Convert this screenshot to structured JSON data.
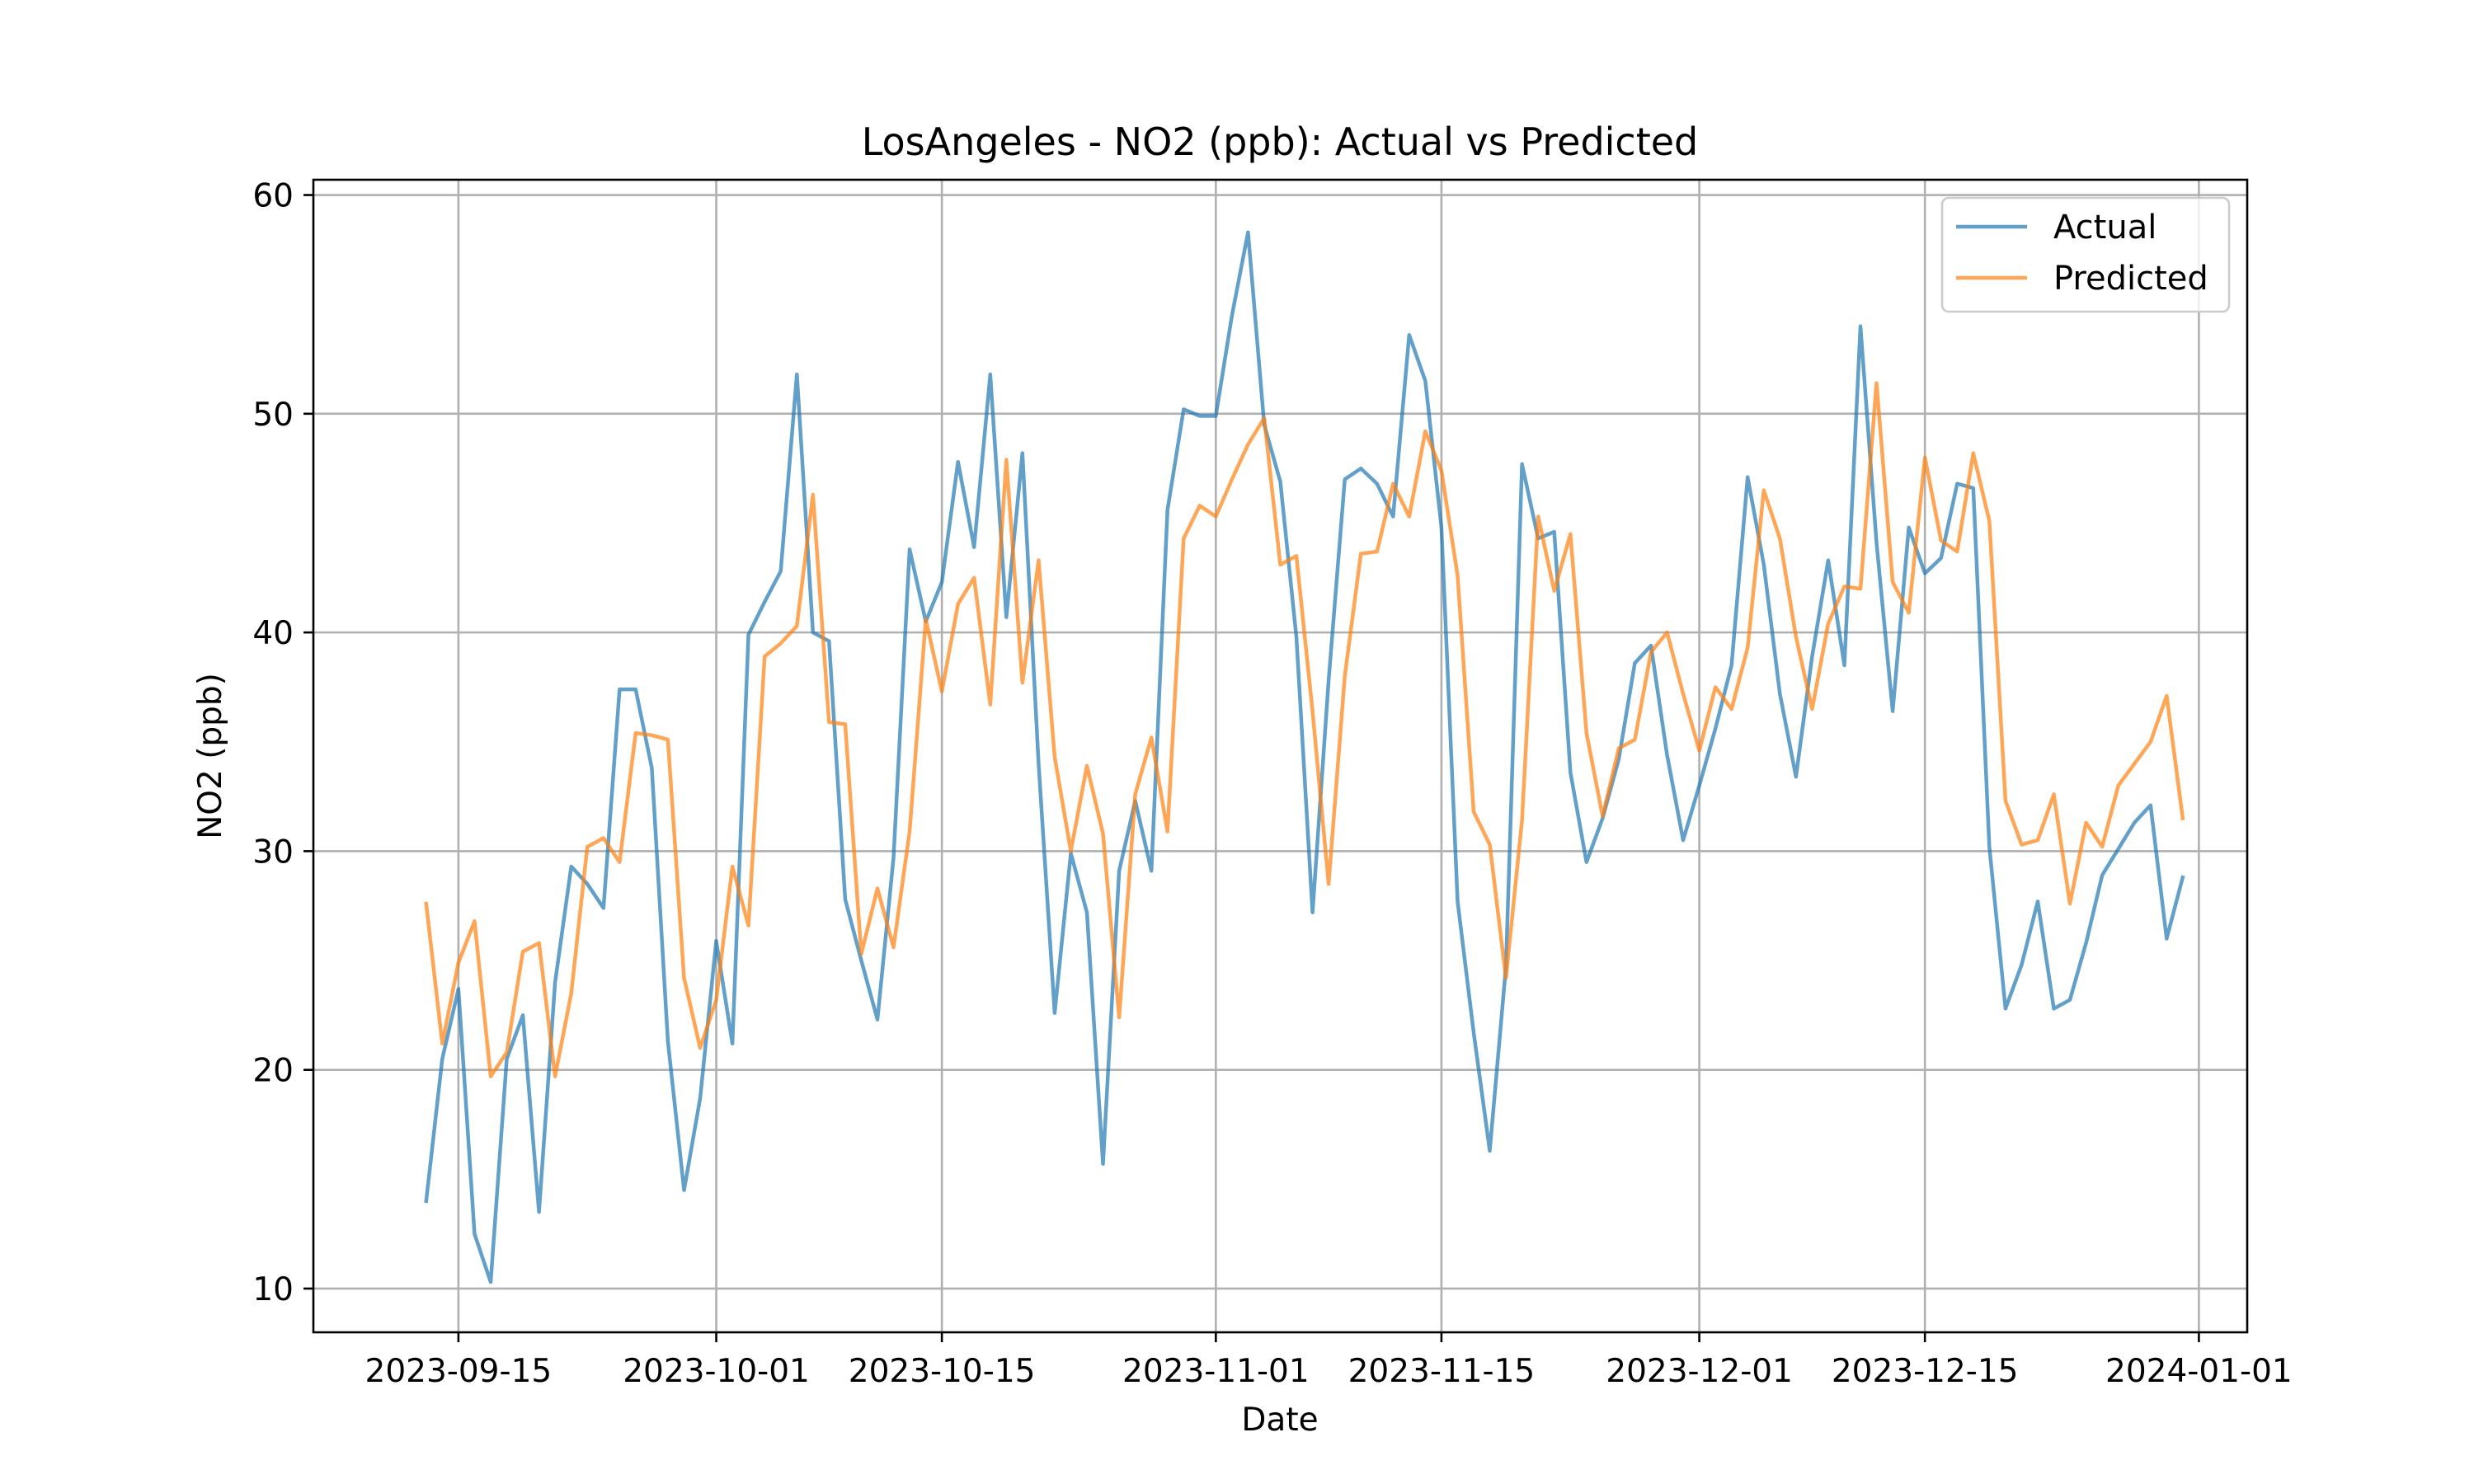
{
  "chart_data": {
    "type": "line",
    "title": "LosAngeles - NO2 (ppb): Actual vs Predicted",
    "xlabel": "Date",
    "ylabel": "NO2 (ppb)",
    "x_start": "2023-09-13",
    "x_range": [
      "2023-09-06",
      "2024-01-04"
    ],
    "ylim": [
      8.0,
      60.7
    ],
    "xticks": [
      "2023-09-15",
      "2023-10-01",
      "2023-10-15",
      "2023-11-01",
      "2023-11-15",
      "2023-12-01",
      "2023-12-15",
      "2024-01-01"
    ],
    "yticks": [
      10,
      20,
      30,
      40,
      50,
      60
    ],
    "grid": true,
    "legend": "top-right",
    "series": [
      {
        "name": "Actual",
        "color": "#1f77b4",
        "values": [
          14.0,
          20.5,
          23.7,
          12.5,
          10.3,
          20.5,
          22.5,
          13.5,
          24.0,
          29.3,
          28.5,
          27.4,
          37.4,
          37.4,
          33.8,
          21.3,
          14.5,
          18.7,
          25.9,
          21.2,
          39.9,
          41.4,
          42.8,
          51.8,
          40.0,
          39.6,
          27.8,
          25.0,
          22.3,
          29.7,
          43.8,
          40.5,
          42.3,
          47.8,
          43.9,
          51.8,
          40.7,
          48.2,
          34.0,
          22.6,
          29.9,
          27.2,
          15.7,
          29.1,
          32.3,
          29.1,
          45.6,
          50.2,
          49.9,
          49.9,
          54.5,
          58.3,
          49.5,
          46.9,
          39.8,
          27.2,
          37.8,
          47.0,
          47.5,
          46.8,
          45.3,
          53.6,
          51.5,
          44.8,
          27.7,
          21.7,
          16.3,
          24.7,
          47.7,
          44.3,
          44.6,
          33.6,
          29.5,
          31.5,
          34.2,
          38.6,
          39.4,
          34.4,
          30.5,
          33.0,
          35.6,
          38.5,
          47.1,
          43.1,
          37.2,
          33.4,
          38.9,
          43.3,
          38.5,
          54.0,
          44.1,
          36.4,
          44.8,
          42.7,
          43.4,
          46.8,
          46.6,
          30.2,
          22.8,
          24.8,
          27.7,
          22.8,
          23.2,
          25.8,
          28.9,
          30.1,
          31.3,
          32.1,
          26.0,
          28.8
        ]
      },
      {
        "name": "Predicted",
        "color": "#ff7f0e",
        "values": [
          27.6,
          21.2,
          24.9,
          26.8,
          19.7,
          20.8,
          25.4,
          25.8,
          19.7,
          23.5,
          30.2,
          30.6,
          29.5,
          35.4,
          35.3,
          35.1,
          24.2,
          21.0,
          23.2,
          29.3,
          26.6,
          38.9,
          39.5,
          40.3,
          46.3,
          35.9,
          35.8,
          25.3,
          28.3,
          25.6,
          30.9,
          40.6,
          37.3,
          41.3,
          42.5,
          36.7,
          47.9,
          37.7,
          43.3,
          34.3,
          30.0,
          33.9,
          30.8,
          22.4,
          32.6,
          35.2,
          30.9,
          44.3,
          45.8,
          45.3,
          47.0,
          48.6,
          49.8,
          43.1,
          43.5,
          36.4,
          28.5,
          38.0,
          43.6,
          43.7,
          46.8,
          45.3,
          49.2,
          47.4,
          42.6,
          31.8,
          30.3,
          24.2,
          31.4,
          45.3,
          41.9,
          44.5,
          35.4,
          31.6,
          34.7,
          35.1,
          39.1,
          40.0,
          37.2,
          34.6,
          37.5,
          36.5,
          39.3,
          46.5,
          44.3,
          39.8,
          36.5,
          40.4,
          42.1,
          42.0,
          51.4,
          42.3,
          40.9,
          48.0,
          44.2,
          43.7,
          48.2,
          45.1,
          32.3,
          30.3,
          30.5,
          32.6,
          27.6,
          31.3,
          30.2,
          33.0,
          34.0,
          35.0,
          37.1,
          31.5
        ]
      }
    ]
  }
}
